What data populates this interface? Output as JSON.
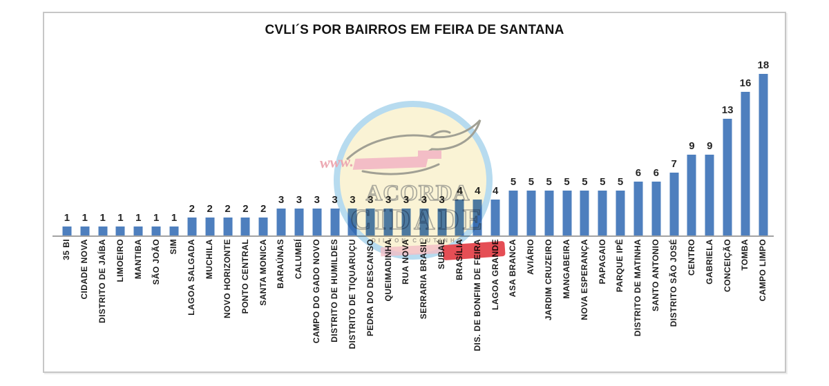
{
  "title": "CVLI´S POR BAIRROS EM FEIRA DE SANTANA",
  "chart_data": {
    "type": "bar",
    "title": "CVLI´S POR BAIRROS EM FEIRA DE SANTANA",
    "xlabel": "",
    "ylabel": "",
    "ylim": [
      0,
      19
    ],
    "grid": false,
    "legend": false,
    "value_labels_shown": true,
    "bar_color": "#4e7fbe",
    "categories": [
      "35 BI",
      "CIDADE NOVA",
      "DISTRITO DE JAÍBA",
      "LIMOEIRO",
      "MANTIBA",
      "SÃO JOÃO",
      "SIM",
      "LAGOA SALGADA",
      "MUCHILA",
      "NOVO HORIZONTE",
      "PONTO CENTRAL",
      "SANTA MONICA",
      "BARAÚNAS",
      "CALUMBÍ",
      "CAMPO DO GADO NOVO",
      "DISTRITO DE HUMILDES",
      "DISTRITO DE TIQUARUÇU",
      "PEDRA DO DESCANSO",
      "QUEIMADINHA",
      "RUA NOVA",
      "SERRARIA BRASIL",
      "SUBAÉ",
      "BRASÍLIA",
      "DIS. DE BONFIM DE FEIRA",
      "LAGOA GRANDE",
      "ASA BRANCA",
      "AVIÁRIO",
      "JARDIM CRUZEIRO",
      "MANGABEIRA",
      "NOVA ESPERANÇA",
      "PAPAGAIO",
      "PARQUE IPÊ",
      "DISTRITO DE MATINHA",
      "SANTO ANTONIO",
      "DISTRITO SÃO JOSÉ",
      "CENTRO",
      "GABRIELA",
      "CONCEIÇÃO",
      "TOMBA",
      "CAMPO LIMPO"
    ],
    "values": [
      1,
      1,
      1,
      1,
      1,
      1,
      1,
      2,
      2,
      2,
      2,
      2,
      3,
      3,
      3,
      3,
      3,
      3,
      3,
      3,
      3,
      3,
      4,
      4,
      4,
      5,
      5,
      5,
      5,
      5,
      5,
      5,
      6,
      6,
      7,
      9,
      9,
      13,
      16,
      18
    ]
  },
  "watermark": {
    "www_text": "www.",
    "line1": "ACORDA",
    "line2": "CIDADE",
    "byline": "DILTON COUTINHO",
    "colors": {
      "circle_fill": "#faf3d3",
      "ring": "#b3d9ef",
      "outline_text": "#a3a296",
      "pink": "#f3bac3",
      "red_banner": "#e4444c"
    }
  },
  "style": {
    "axis_line_color": "#a2a2a2",
    "frame_border_color": "#c6c6c6",
    "value_label_color": "#262626",
    "category_label_color": "#1c1c1c"
  }
}
